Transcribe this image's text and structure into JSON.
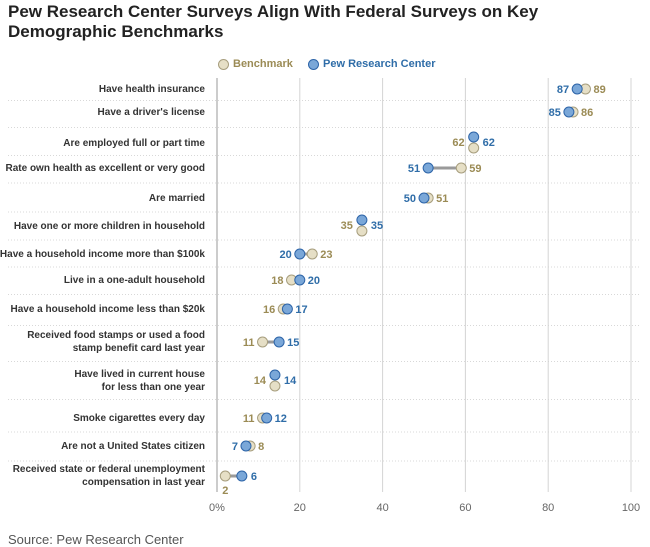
{
  "title": "Pew Research Center Surveys Align With Federal Surveys on Key Demographic Benchmarks",
  "source": "Source: Pew Research Center",
  "colors": {
    "benchmark_fill": "#e6dfc6",
    "benchmark_stroke": "#a79e7e",
    "benchmark_text": "#9b8b55",
    "pew_fill": "#7aa7d8",
    "pew_stroke": "#2d64a8",
    "pew_text": "#2f6da8",
    "connector": "#9a9a9a",
    "grid": "#d4d4d4"
  },
  "legend": [
    {
      "name": "Benchmark",
      "key": "benchmark"
    },
    {
      "name": "Pew Research Center",
      "key": "pew"
    }
  ],
  "chart_data": {
    "type": "dot-plot",
    "title": "Pew Research Center Surveys Align With Federal Surveys on Key Demographic Benchmarks",
    "xlim": [
      0,
      100
    ],
    "xticks": [
      0,
      20,
      40,
      60,
      80,
      100
    ],
    "xtick_labels": [
      "0%",
      "20",
      "40",
      "60",
      "80",
      "100"
    ],
    "grid": true,
    "legend_position": "top",
    "series": [
      {
        "name": "Benchmark",
        "key": "benchmark"
      },
      {
        "name": "Pew Research Center",
        "key": "pew"
      }
    ],
    "rows": [
      {
        "label": [
          "Have health insurance"
        ],
        "benchmark": 89,
        "pew": 87
      },
      {
        "label": [
          "Have a driver's license"
        ],
        "benchmark": 86,
        "pew": 85
      },
      {
        "label": [
          "Are employed full or part time"
        ],
        "benchmark": 62,
        "pew": 62
      },
      {
        "label": [
          "Rate own health as excellent or very good"
        ],
        "benchmark": 59,
        "pew": 51
      },
      {
        "label": [
          "Are married"
        ],
        "benchmark": 51,
        "pew": 50
      },
      {
        "label": [
          "Have one or more children in household"
        ],
        "benchmark": 35,
        "pew": 35
      },
      {
        "label": [
          "Have a household income more than $100k"
        ],
        "benchmark": 23,
        "pew": 20
      },
      {
        "label": [
          "Live in a one-adult household"
        ],
        "benchmark": 18,
        "pew": 20
      },
      {
        "label": [
          "Have a household income less than $20k"
        ],
        "benchmark": 16,
        "pew": 17
      },
      {
        "label": [
          "Received food stamps or used a food",
          "stamp benefit card last year"
        ],
        "benchmark": 11,
        "pew": 15
      },
      {
        "label": [
          "Have lived in current house",
          "for less than one year"
        ],
        "benchmark": 14,
        "pew": 14
      },
      {
        "label": [
          "Smoke cigarettes every day"
        ],
        "benchmark": 11,
        "pew": 12
      },
      {
        "label": [
          "Are not a United States citizen"
        ],
        "benchmark": 8,
        "pew": 7
      },
      {
        "label": [
          "Received state or federal unemployment",
          "compensation in last year"
        ],
        "benchmark": 2,
        "pew": 6
      }
    ]
  }
}
